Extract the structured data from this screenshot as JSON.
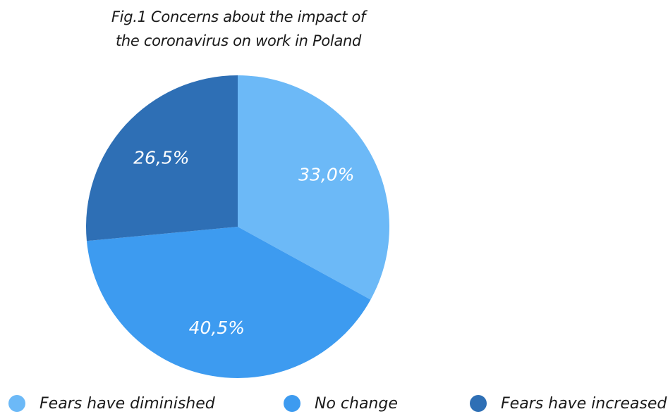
{
  "chart_data": {
    "type": "pie",
    "title_lines": [
      "Fig.1 Concerns about the impact of",
      "the coronavirus on work in Poland"
    ],
    "slices": [
      {
        "name": "Fears have diminished",
        "value": 33.0,
        "label": "33,0%",
        "color": "#6cb9f7"
      },
      {
        "name": "No change",
        "value": 40.5,
        "label": "40,5%",
        "color": "#3d9bf0"
      },
      {
        "name": "Fears have increased",
        "value": 26.5,
        "label": "26,5%",
        "color": "#2e6fb5"
      }
    ],
    "start": "12 o'clock",
    "direction": "clockwise",
    "legend_position": "bottom"
  }
}
